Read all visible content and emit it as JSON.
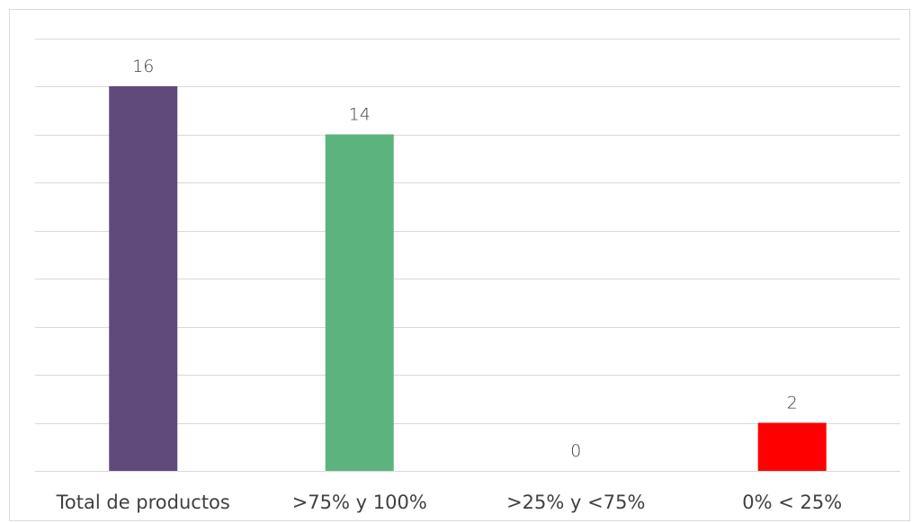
{
  "chart_data": {
    "type": "bar",
    "title": "",
    "xlabel": "",
    "ylabel": "",
    "categories": [
      "Total de productos",
      ">75% y 100%",
      ">25% y <75%",
      "0% < 25%"
    ],
    "values": [
      16,
      14,
      0,
      2
    ],
    "data_labels": [
      "16",
      "14",
      "0",
      "2"
    ],
    "colors": [
      "#604a7b",
      "#5db37e",
      "#5db37e",
      "#ff0000"
    ],
    "ylim": [
      0,
      18
    ],
    "y_gridline_step": 2,
    "grid": true,
    "legend": "none"
  }
}
